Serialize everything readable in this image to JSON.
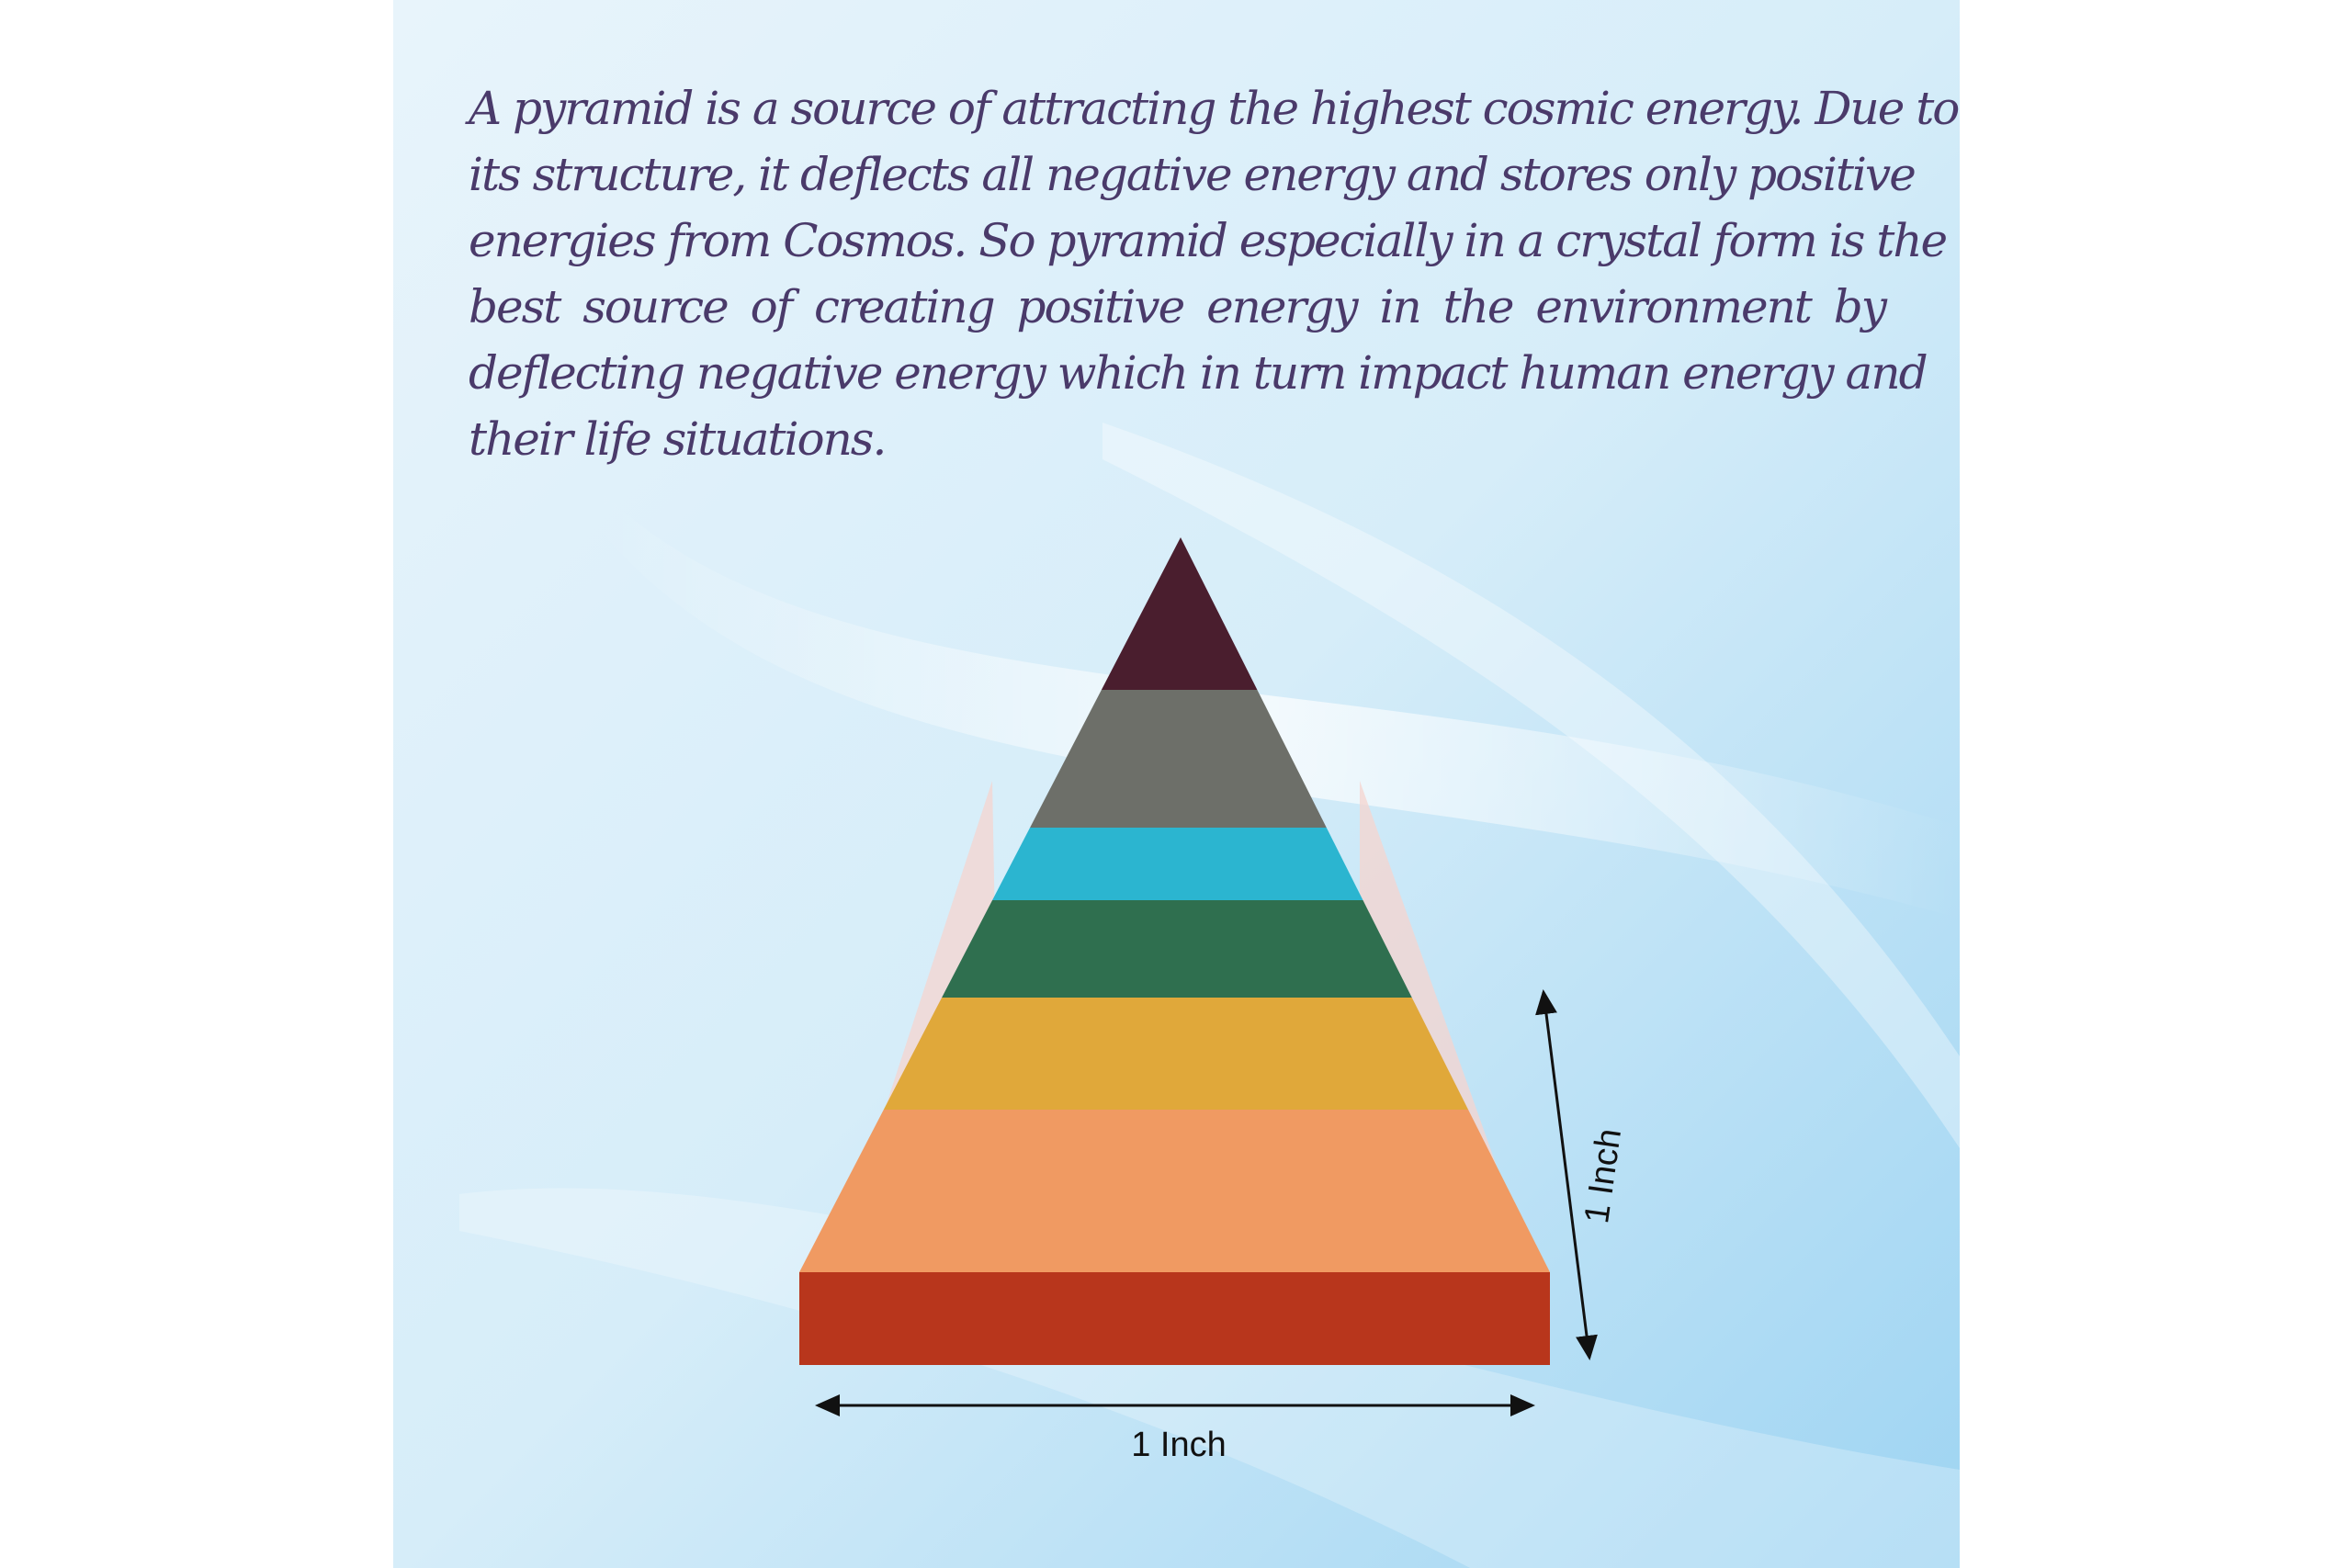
{
  "description_lines": [
    "A pyramid is a source of attracting the highest cosmic energy. Due to",
    "its structure, it deflects all negative energy and stores only positive",
    "energies from Cosmos. So pyramid especially in a crystal form is the",
    "best source of creating positive energy in the environment by",
    "deflecting negative energy which in turn impact human energy and",
    "their life situations."
  ],
  "dimensions": {
    "width_label": "1 Inch",
    "height_label": "1 Inch"
  },
  "colors": {
    "background": "#dff0fa",
    "text": "#4a3a6a",
    "bands": [
      "#4a1e2e",
      "#6d6f69",
      "#2bb5d0",
      "#2f6f4f",
      "#e0a83a",
      "#f09a62",
      "#b8361c"
    ]
  }
}
